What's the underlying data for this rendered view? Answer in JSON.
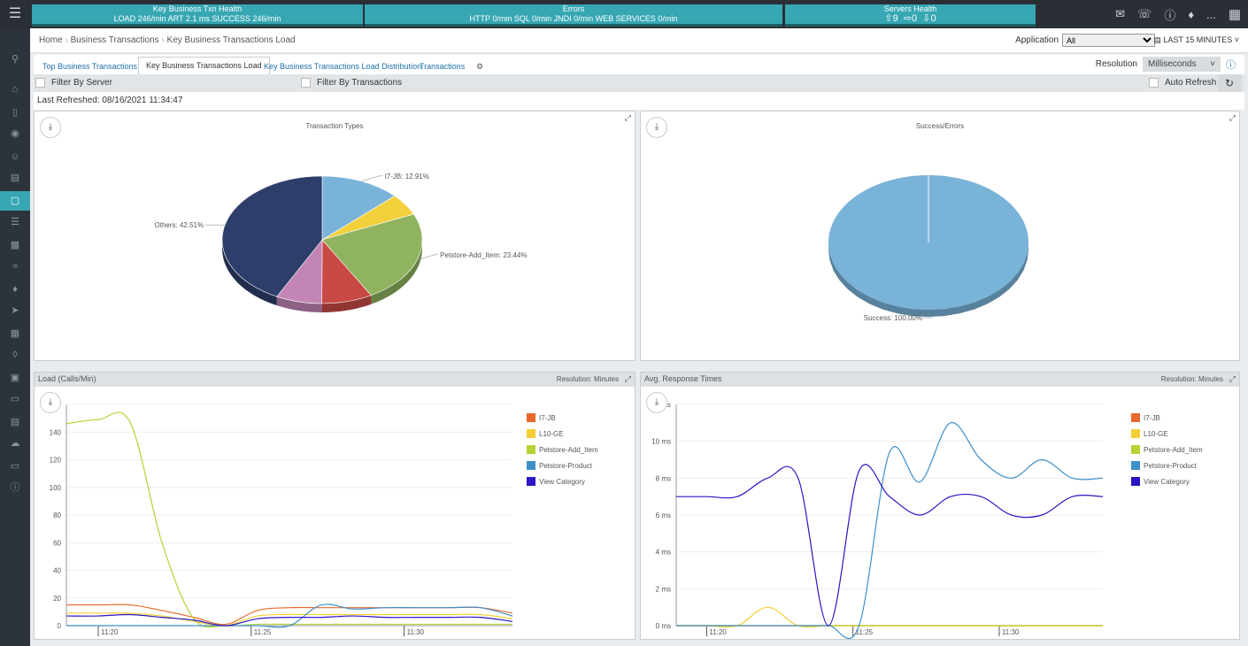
{
  "header": {
    "menu_icon": "hamburger-icon",
    "txn_health": {
      "title": "Key Business Txn Health",
      "stats": "LOAD 246/min  ART 2.1 ms  SUCCESS 246/min"
    },
    "errors": {
      "title": "Errors",
      "stats": "HTTP 0/min  SQL 0/min  JNDI 0/min  WEB SERVICES 0/min"
    },
    "servers": {
      "title": "Servers Health",
      "up": "9",
      "mid": "0",
      "down": "0"
    },
    "user_menu": "..."
  },
  "breadcrumb": {
    "home": "Home",
    "level1": "Business Transactions",
    "level2": "Key Business Transactions Load"
  },
  "application": {
    "label": "Application",
    "value": "All"
  },
  "time_range": "LAST 15 MINUTES",
  "tabs": [
    {
      "label": "Top Business Transactions"
    },
    {
      "label": "Key Business Transactions Load"
    },
    {
      "label": "Key Business Transactions Load Distribution"
    },
    {
      "label": "Transactions"
    }
  ],
  "resolution": {
    "label": "Resolution",
    "value": "Milliseconds"
  },
  "filters": {
    "server": "Filter By Server",
    "transactions": "Filter By Transactions",
    "auto_refresh": "Auto Refresh"
  },
  "last_refreshed": "Last Refreshed: 08/16/2021 11:34:47",
  "panels": {
    "transaction_types": {
      "title": "Transaction Types"
    },
    "success_errors": {
      "title": "Success/Errors"
    },
    "load": {
      "title": "Load (Calls/Min)",
      "resolution": "Resolution: Minutes"
    },
    "response": {
      "title": "Avg. Response Times",
      "resolution": "Resolution: Minutes"
    }
  },
  "series_legend": [
    {
      "name": "I7-JB",
      "color": "#e8692b"
    },
    {
      "name": "L10-GE",
      "color": "#f5cf35"
    },
    {
      "name": "Petstore-Add_Item",
      "color": "#b5d334"
    },
    {
      "name": "Petstore-Product",
      "color": "#3f8fc9"
    },
    {
      "name": "View Category",
      "color": "#2a16c4"
    }
  ],
  "chart_data": [
    {
      "type": "pie",
      "title": "Transaction Types",
      "slices": [
        {
          "label": "I7-JB: 12.91%",
          "value": 12.91,
          "color": "#7ab3d8"
        },
        {
          "label": "",
          "value": 5.5,
          "color": "#f2d13d"
        },
        {
          "label": "Petstore-Add_Item: 23.44%",
          "value": 23.44,
          "color": "#8fb35f"
        },
        {
          "label": "",
          "value": 8.2,
          "color": "#c94a45"
        },
        {
          "label": "",
          "value": 7.44,
          "color": "#c285b5"
        },
        {
          "label": "Others: 42.51%",
          "value": 42.51,
          "color": "#2e3e6b"
        }
      ]
    },
    {
      "type": "pie",
      "title": "Success/Errors",
      "slices": [
        {
          "label": "Success: 100.00%",
          "value": 100,
          "color": "#7ab3d8"
        }
      ]
    },
    {
      "type": "line",
      "title": "Load (Calls/Min)",
      "y_ticks": [
        "0",
        "20",
        "40",
        "60",
        "80",
        "100",
        "120",
        "140",
        "160"
      ],
      "ylim": [
        0,
        160
      ],
      "x_ticks": [
        "11:20",
        "11:25",
        "11:30"
      ],
      "x": [
        0,
        1,
        2,
        3,
        4,
        5,
        6,
        7,
        8,
        9,
        10,
        11,
        12,
        13,
        14
      ],
      "series": [
        {
          "name": "I7-JB",
          "color": "#e8692b",
          "values": [
            15,
            15,
            15,
            11,
            6,
            1,
            11,
            13,
            13,
            13,
            13,
            13,
            13,
            13,
            9
          ]
        },
        {
          "name": "L10-GE",
          "color": "#f5cf35",
          "values": [
            9,
            9,
            9,
            7,
            3,
            0,
            7,
            8,
            8,
            8,
            8,
            8,
            8,
            8,
            5
          ]
        },
        {
          "name": "Petstore-Add_Item",
          "color": "#b5d334",
          "values": [
            146,
            149,
            147,
            60,
            5,
            0,
            1,
            1,
            1,
            1,
            1,
            1,
            1,
            1,
            1
          ]
        },
        {
          "name": "Petstore-Product",
          "color": "#3f8fc9",
          "values": [
            0,
            0,
            0,
            0,
            0,
            0,
            0,
            0,
            15,
            12,
            13,
            13,
            13,
            13,
            7
          ]
        },
        {
          "name": "View Category",
          "color": "#2a16c4",
          "values": [
            7,
            7,
            8,
            6,
            4,
            0,
            5,
            6,
            6,
            7,
            6,
            6,
            6,
            6,
            3
          ]
        }
      ]
    },
    {
      "type": "line",
      "title": "Avg. Response Times",
      "y_ticks": [
        "0 ms",
        "2 ms",
        "4 ms",
        "6 ms",
        "8 ms",
        "10 ms",
        "12 ms"
      ],
      "ylim": [
        0,
        12
      ],
      "x_ticks": [
        "11:20",
        "11:25",
        "11:30"
      ],
      "x": [
        0,
        1,
        2,
        3,
        4,
        5,
        6,
        7,
        8,
        9,
        10,
        11,
        12,
        13,
        14
      ],
      "series": [
        {
          "name": "I7-JB",
          "color": "#e8692b",
          "values": [
            0,
            0,
            0,
            0,
            0,
            0,
            0,
            0,
            0,
            0,
            0,
            0,
            0,
            0,
            0
          ]
        },
        {
          "name": "L10-GE",
          "color": "#f5cf35",
          "values": [
            0,
            0,
            0,
            1,
            0,
            0,
            0,
            0,
            0,
            0,
            0,
            0,
            0,
            0,
            0
          ]
        },
        {
          "name": "Petstore-Add_Item",
          "color": "#b5d334",
          "values": [
            0,
            0,
            0,
            0,
            0,
            0,
            0,
            0,
            0,
            0,
            0,
            0,
            0,
            0,
            0
          ]
        },
        {
          "name": "Petstore-Product",
          "color": "#3f8fc9",
          "values": [
            0,
            0,
            0,
            0,
            0,
            0,
            0,
            9.4,
            7.8,
            11,
            9,
            8,
            9,
            8,
            8
          ]
        },
        {
          "name": "View Category",
          "color": "#2a16c4",
          "values": [
            7,
            7,
            7,
            8,
            8,
            0,
            8.4,
            7,
            6,
            7,
            7,
            6,
            6,
            7,
            7
          ]
        }
      ]
    }
  ]
}
